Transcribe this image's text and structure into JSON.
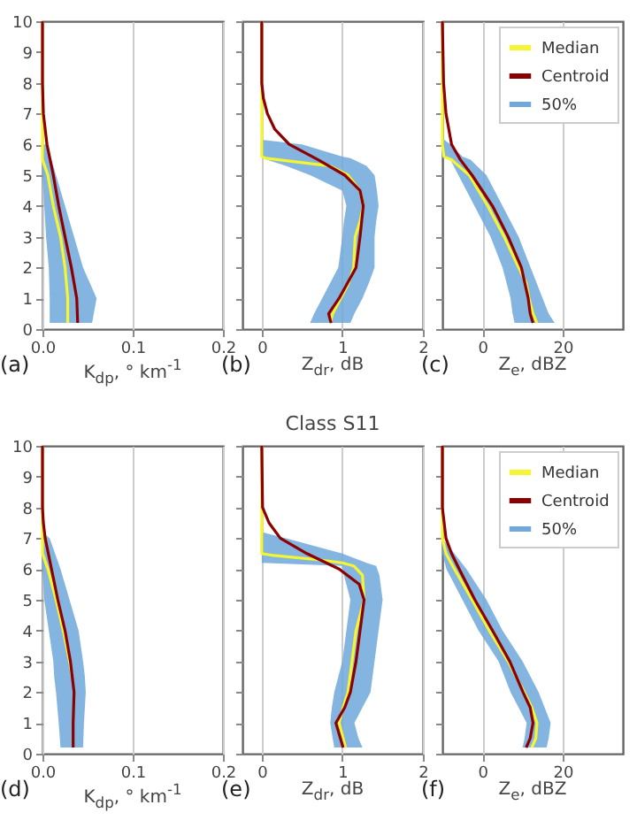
{
  "chart_data": [
    {
      "type": "line",
      "orientation": "horizontal",
      "xlabel": "K$_{dp}$, ° km$^{-1}$",
      "annotations": [
        "(a)"
      ],
      "xlim": [
        0,
        0.2
      ],
      "xticks": [
        {
          "value": 0,
          "label": "0.0"
        },
        {
          "value": 0.1,
          "label": "0.1"
        },
        {
          "value": 0.2,
          "label": "0.2"
        }
      ],
      "ylim": [
        0,
        10
      ],
      "yticks": [
        0,
        1,
        2,
        3,
        4,
        5,
        6,
        7,
        8,
        9,
        10
      ],
      "grid": "x",
      "legend": false,
      "series": [
        {
          "color": "#f5f532",
          "x": [
            0.2,
            1,
            2,
            3,
            4,
            5,
            5.5,
            6,
            7,
            8,
            9,
            10
          ],
          "values": [
            0.028,
            0.028,
            0.025,
            0.02,
            0.012,
            0.006,
            0,
            0,
            0,
            0,
            0,
            0
          ],
          "lower": [
            0.008,
            0.008,
            0.007,
            0.004,
            0.002,
            0,
            0,
            0,
            null,
            null,
            null,
            null
          ],
          "upper": [
            0.055,
            0.06,
            0.045,
            0.035,
            0.025,
            0.015,
            0.01,
            0.005,
            null,
            null,
            null,
            null
          ]
        },
        {
          "color": "#8b0000",
          "x": [
            0.2,
            1,
            2,
            3,
            4,
            5,
            6,
            7,
            8,
            9,
            10
          ],
          "values": [
            0.039,
            0.038,
            0.032,
            0.025,
            0.018,
            0.012,
            0.005,
            0.001,
            0,
            0,
            0
          ]
        },
        {
          "type": "area",
          "color": "#6fa8dc"
        }
      ]
    },
    {
      "type": "line",
      "orientation": "horizontal",
      "xlabel": "Z$_{dr}$, dB",
      "annotations": [
        "(b)"
      ],
      "xlim": [
        -0.24,
        2
      ],
      "xticks": [
        0,
        1,
        2
      ],
      "ylim": [
        0,
        10
      ],
      "yticks": [
        0,
        1,
        2,
        3,
        4,
        5,
        6,
        7,
        8,
        9,
        10
      ],
      "tick_labels": "x",
      "grid": "x",
      "legend": false,
      "series": [
        {
          "color": "#f5f532",
          "x": [
            0.2,
            0.5,
            1,
            1.5,
            2,
            3,
            3.5,
            4,
            4.5,
            5,
            5.3,
            5.55,
            5.6,
            6,
            6.15,
            7,
            8,
            9,
            10
          ],
          "values": [
            0.85,
            0.88,
            0.98,
            1.08,
            1.14,
            1.16,
            1.22,
            1.26,
            1.22,
            1.07,
            0.85,
            0.05,
            0,
            0,
            0,
            0,
            0,
            0,
            0
          ],
          "lower": [
            0.6,
            0.65,
            0.75,
            0.85,
            0.95,
            1,
            1.02,
            1.05,
            1,
            0.6,
            0.3,
            0,
            0,
            0,
            0,
            null,
            null,
            null,
            null
          ],
          "upper": [
            1.1,
            1.15,
            1.25,
            1.33,
            1.4,
            1.4,
            1.42,
            1.45,
            1.43,
            1.4,
            1.3,
            1.1,
            1,
            0.5,
            0,
            null,
            null,
            null,
            null
          ]
        },
        {
          "color": "#8b0000",
          "x": [
            0.2,
            0.5,
            1,
            2,
            3,
            4,
            4.5,
            5,
            5.5,
            6,
            6.5,
            7,
            7.5,
            8,
            9,
            10
          ],
          "values": [
            0.86,
            0.83,
            0.96,
            1.17,
            1.22,
            1.26,
            1.22,
            1.03,
            0.7,
            0.34,
            0.16,
            0.07,
            0.02,
            0,
            0,
            0
          ]
        },
        {
          "type": "area",
          "color": "#6fa8dc"
        }
      ]
    },
    {
      "type": "line",
      "orientation": "horizontal",
      "xlabel": "Z$_{e}$, dBZ",
      "annotations": [
        "(c)"
      ],
      "xlim": [
        -10,
        35
      ],
      "xticks": [
        0,
        20
      ],
      "ylim": [
        0,
        10
      ],
      "yticks": [
        0,
        1,
        2,
        3,
        4,
        5,
        6,
        7,
        8,
        9,
        10
      ],
      "tick_labels": "x",
      "grid": "x",
      "legend": "top right",
      "series": [
        {
          "name": "Median",
          "color": "#f5f532",
          "x": [
            0.2,
            0.5,
            1,
            1.5,
            2,
            3,
            4,
            5,
            5.5,
            5.6,
            6,
            6.2,
            7,
            8,
            9,
            10
          ],
          "values": [
            13.6,
            12.6,
            11.6,
            10.9,
            9,
            5.4,
            1.3,
            -3.3,
            -7.7,
            -9.6,
            -10,
            -10,
            -10,
            -10,
            -10,
            -10
          ],
          "lower": [
            8,
            7.5,
            7,
            6,
            5,
            2,
            -2,
            -6,
            -8,
            -10,
            -10,
            -10,
            null,
            null,
            null,
            null
          ],
          "upper": [
            18,
            16.5,
            15,
            13.5,
            12,
            9,
            5,
            1,
            -3,
            -5,
            -8,
            -10,
            null,
            null,
            null,
            null
          ]
        },
        {
          "name": "Centroid",
          "color": "#8b0000",
          "x": [
            0.2,
            0.5,
            1,
            2,
            3,
            4,
            5,
            5.5,
            6,
            7,
            8,
            10
          ],
          "values": [
            12.6,
            11.9,
            11.4,
            9.7,
            6.4,
            2.5,
            -2.6,
            -5.5,
            -7.7,
            -9.1,
            -9.7,
            -10
          ]
        },
        {
          "name": "50%",
          "type": "area",
          "color": "#6fa8dc"
        }
      ]
    },
    {
      "type": "line",
      "orientation": "horizontal",
      "xlabel": "K$_{dp}$, ° km$^{-1}$",
      "annotations": [
        "(d)"
      ],
      "xlim": [
        0,
        0.2
      ],
      "xticks": [
        {
          "value": 0,
          "label": "0.0"
        },
        {
          "value": 0.1,
          "label": "0.1"
        },
        {
          "value": 0.2,
          "label": "0.2"
        }
      ],
      "ylim": [
        0,
        10
      ],
      "yticks": [
        0,
        1,
        2,
        3,
        4,
        5,
        6,
        7,
        8,
        9,
        10
      ],
      "grid": "x",
      "legend": false,
      "series": [
        {
          "color": "#f5f532",
          "x": [
            0.2,
            1,
            2,
            2.5,
            3,
            4,
            5,
            6,
            6.5,
            7,
            7.2,
            8,
            9,
            10
          ],
          "values": [
            null,
            null,
            null,
            0.033,
            0.03,
            0.023,
            0.015,
            0.006,
            0,
            0,
            0,
            0,
            0,
            0
          ],
          "lower": [
            0.02,
            0.018,
            0.015,
            0.013,
            0.012,
            0.007,
            0.002,
            0,
            0,
            0,
            0,
            null,
            null,
            null
          ],
          "upper": [
            0.045,
            0.046,
            0.048,
            0.047,
            0.045,
            0.04,
            0.03,
            0.02,
            0.014,
            0.008,
            0,
            null,
            null,
            null
          ]
        },
        {
          "color": "#8b0000",
          "x": [
            0.2,
            1,
            2,
            3,
            4,
            5,
            6,
            7,
            7.5,
            8,
            9,
            10
          ],
          "values": [
            0.034,
            0.034,
            0.035,
            0.031,
            0.025,
            0.017,
            0.01,
            0.003,
            0.001,
            0,
            0,
            0
          ]
        },
        {
          "type": "area",
          "color": "#6fa8dc"
        }
      ]
    },
    {
      "type": "line",
      "orientation": "horizontal",
      "title": "Class S11",
      "xlabel": "Z$_{dr}$, dB",
      "annotations": [
        "(e)"
      ],
      "xlim": [
        -0.24,
        2
      ],
      "xticks": [
        0,
        1,
        2
      ],
      "ylim": [
        0,
        10
      ],
      "yticks": [
        0,
        1,
        2,
        3,
        4,
        5,
        6,
        7,
        8,
        9,
        10
      ],
      "tick_labels": "x",
      "grid": "x",
      "legend": false,
      "series": [
        {
          "color": "#f5f532",
          "x": [
            0.2,
            0.5,
            1,
            1.5,
            2,
            3,
            4,
            5,
            5.8,
            6.1,
            6.2,
            6.3,
            6.45,
            6.5,
            7,
            7.2,
            8,
            9,
            10
          ],
          "values": [
            1.04,
            1.01,
            0.96,
            1.01,
            1.07,
            1.12,
            1.17,
            1.27,
            1.25,
            1.14,
            1,
            0.7,
            0.12,
            0,
            0,
            0,
            0,
            0,
            0
          ],
          "lower": [
            0.9,
            0.88,
            0.85,
            0.87,
            0.9,
            1,
            1.05,
            1.1,
            1.02,
            1,
            0,
            0,
            0,
            0,
            0,
            0,
            null,
            null,
            null
          ],
          "upper": [
            1.25,
            1.2,
            1.15,
            1.25,
            1.35,
            1.4,
            1.45,
            1.5,
            1.46,
            1.42,
            1.3,
            1.2,
            1.05,
            1,
            0.3,
            0,
            null,
            null,
            null
          ]
        },
        {
          "color": "#8b0000",
          "x": [
            0.2,
            1,
            1.5,
            2,
            3,
            4,
            5,
            5.5,
            6,
            6.5,
            7,
            7.5,
            8,
            10
          ],
          "values": [
            1.01,
            0.92,
            1.03,
            1.1,
            1.17,
            1.22,
            1.27,
            1.21,
            0.96,
            0.56,
            0.23,
            0.09,
            0.01,
            0
          ]
        },
        {
          "type": "area",
          "color": "#6fa8dc"
        }
      ]
    },
    {
      "type": "line",
      "orientation": "horizontal",
      "xlabel": "Z$_{e}$, dBZ",
      "annotations": [
        "(f)"
      ],
      "xlim": [
        -10,
        35
      ],
      "xticks": [
        0,
        20
      ],
      "ylim": [
        0,
        10
      ],
      "yticks": [
        0,
        1,
        2,
        3,
        4,
        5,
        6,
        7,
        8,
        9,
        10
      ],
      "tick_labels": "x",
      "grid": "x",
      "legend": "top right",
      "series": [
        {
          "name": "Median",
          "color": "#f5f532",
          "x": [
            0.2,
            0.5,
            1,
            1.5,
            2,
            3,
            4,
            5,
            6,
            6.5,
            7,
            8,
            9,
            10
          ],
          "values": [
            12.3,
            13.3,
            13.6,
            12.3,
            10.4,
            6.4,
            1.7,
            -2.6,
            -7,
            -9.1,
            -10,
            -10,
            -10,
            -10
          ],
          "lower": [
            10,
            10.5,
            11,
            9,
            7,
            4,
            -1,
            -5,
            -9,
            -10,
            -10,
            null,
            null,
            null
          ],
          "upper": [
            16,
            16.5,
            17,
            15.5,
            14,
            10,
            5,
            1,
            -4,
            -7,
            -10,
            null,
            null,
            null
          ]
        },
        {
          "name": "Centroid",
          "color": "#8b0000",
          "x": [
            0.2,
            0.5,
            1,
            1.5,
            2,
            3,
            4,
            5,
            6,
            6.5,
            7,
            8,
            10
          ],
          "values": [
            10.9,
            11.9,
            12.6,
            11.9,
            10.1,
            6.8,
            2.5,
            -1.9,
            -5.8,
            -7.7,
            -9.1,
            -10,
            -10
          ]
        },
        {
          "name": "50%",
          "type": "area",
          "color": "#6fa8dc"
        }
      ]
    }
  ]
}
